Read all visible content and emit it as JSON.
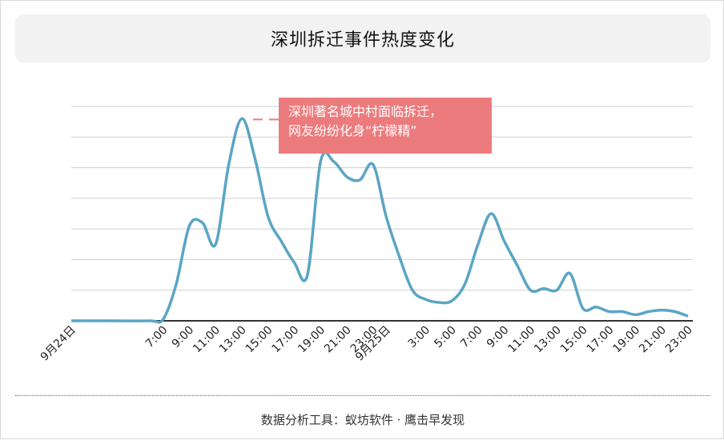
{
  "title": "深圳拆迁事件热度变化",
  "source": "数据分析工具：蚁坊软件 · 鹰击早发现",
  "annotation": {
    "line1": "深圳著名城中村面临拆迁，",
    "line2": "网友纷纷化身“柠檬精”",
    "x": "13:00",
    "color": "#ec7b7e"
  },
  "chart_data": {
    "type": "line",
    "title": "深圳拆迁事件热度变化",
    "xlabel": "",
    "ylabel": "",
    "ylim": [
      0,
      7
    ],
    "grid": true,
    "legend": "none",
    "line_color": "#5aa5c5",
    "tick_labels": [
      "9月24日",
      "7:00",
      "9:00",
      "11:00",
      "13:00",
      "15:00",
      "17:00",
      "19:00",
      "21:00",
      "23:00",
      "9月25日",
      "3:00",
      "5:00",
      "7:00",
      "9:00",
      "11:00",
      "13:00",
      "15:00",
      "17:00",
      "19:00",
      "21:00",
      "23:00"
    ],
    "x": [
      "9月24日 0:00",
      "9月24日 3:00",
      "9月24日 6:00",
      "9月24日 7:00",
      "9月24日 8:00",
      "9月24日 9:00",
      "9月24日 10:00",
      "9月24日 11:00",
      "9月24日 12:00",
      "9月24日 13:00",
      "9月24日 14:00",
      "9月24日 15:00",
      "9月24日 16:00",
      "9月24日 17:00",
      "9月24日 18:00",
      "9月24日 19:00",
      "9月24日 20:00",
      "9月24日 21:00",
      "9月24日 22:00",
      "9月24日 23:00",
      "9月25日 0:00",
      "9月25日 1:00",
      "9月25日 2:00",
      "9月25日 3:00",
      "9月25日 4:00",
      "9月25日 5:00",
      "9月25日 6:00",
      "9月25日 7:00",
      "9月25日 8:00",
      "9月25日 9:00",
      "9月25日 10:00",
      "9月25日 11:00",
      "9月25日 12:00",
      "9月25日 13:00",
      "9月25日 14:00",
      "9月25日 15:00",
      "9月25日 16:00",
      "9月25日 17:00",
      "9月25日 18:00",
      "9月25日 19:00",
      "9月25日 20:00",
      "9月25日 21:00",
      "9月25日 22:00",
      "9月25日 23:00"
    ],
    "series": [
      {
        "values": [
          0,
          0,
          0,
          0.05,
          1.2,
          3.1,
          3.2,
          2.5,
          5.1,
          6.6,
          5.3,
          3.4,
          2.6,
          1.9,
          1.5,
          5.2,
          5.2,
          4.7,
          4.6,
          5.1,
          3.4,
          2.1,
          1,
          0.7,
          0.6,
          0.65,
          1.2,
          2.5,
          3.5,
          2.6,
          1.8,
          1,
          1.05,
          1.0,
          1.55,
          0.4,
          0.45,
          0.3,
          0.3,
          0.2,
          0.3,
          0.35,
          0.3,
          0.15
        ]
      }
    ]
  }
}
